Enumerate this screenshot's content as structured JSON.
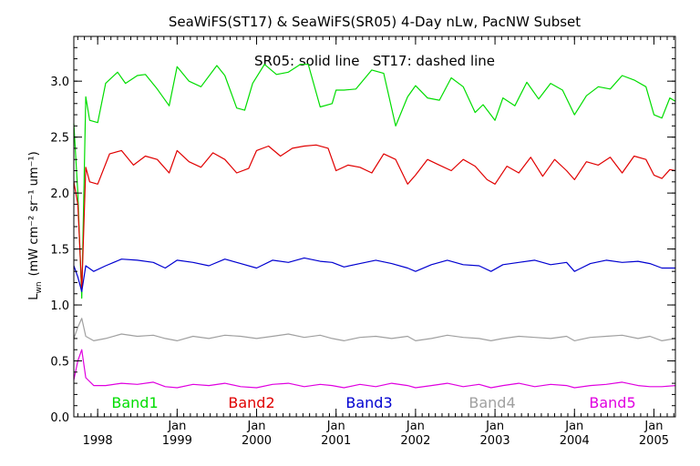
{
  "chart_data": {
    "type": "line",
    "title": "SeaWiFS(ST17) & SeaWiFS(SR05) 4-Day nLw, PacNW Subset",
    "subtitle": "SR05: solid line   ST17: dashed line",
    "ylabel": "L",
    "ylabel_sub": "wn",
    "ylabel_units": "(mW cm⁻² sr⁻¹ um⁻¹)",
    "xlim": [
      1997.7,
      2005.27
    ],
    "ylim": [
      0.0,
      3.4
    ],
    "yticks": [
      0.0,
      0.5,
      1.0,
      1.5,
      2.0,
      2.5,
      3.0
    ],
    "ytick_labels": [
      "0.0",
      "0.5",
      "1.0",
      "1.5",
      "2.0",
      "2.5",
      "3.0"
    ],
    "xticks": [
      {
        "x": 1998.0,
        "top": "",
        "bottom": "1998"
      },
      {
        "x": 1999.0,
        "top": "Jan",
        "bottom": "1999"
      },
      {
        "x": 2000.0,
        "top": "Jan",
        "bottom": "2000"
      },
      {
        "x": 2001.0,
        "top": "Jan",
        "bottom": "2001"
      },
      {
        "x": 2002.0,
        "top": "Jan",
        "bottom": "2002"
      },
      {
        "x": 2003.0,
        "top": "Jan",
        "bottom": "2003"
      },
      {
        "x": 2004.0,
        "top": "Jan",
        "bottom": "2004"
      },
      {
        "x": 2005.0,
        "top": "Jan",
        "bottom": "2005"
      }
    ],
    "series": [
      {
        "name": "Band1",
        "color": "#00dd00",
        "x": [
          1997.7,
          1997.75,
          1997.8,
          1997.85,
          1997.9,
          1998.0,
          1998.1,
          1998.25,
          1998.35,
          1998.5,
          1998.6,
          1998.75,
          1998.9,
          1999.0,
          1999.15,
          1999.3,
          1999.5,
          1999.6,
          1999.75,
          1999.85,
          1999.95,
          2000.1,
          2000.25,
          2000.4,
          2000.55,
          2000.65,
          2000.8,
          2000.95,
          2001.0,
          2001.1,
          2001.25,
          2001.45,
          2001.6,
          2001.75,
          2001.9,
          2002.0,
          2002.15,
          2002.3,
          2002.45,
          2002.6,
          2002.75,
          2002.85,
          2003.0,
          2003.1,
          2003.25,
          2003.4,
          2003.55,
          2003.7,
          2003.85,
          2004.0,
          2004.15,
          2004.3,
          2004.45,
          2004.6,
          2004.75,
          2004.9,
          2005.0,
          2005.1,
          2005.2,
          2005.27
        ],
        "values": [
          2.62,
          2.0,
          1.06,
          2.86,
          2.65,
          2.63,
          2.98,
          3.08,
          2.98,
          3.05,
          3.06,
          2.93,
          2.78,
          3.13,
          3.0,
          2.95,
          3.14,
          3.05,
          2.76,
          2.74,
          2.98,
          3.15,
          3.06,
          3.08,
          3.15,
          3.15,
          2.77,
          2.8,
          2.92,
          2.92,
          2.93,
          3.1,
          3.07,
          2.6,
          2.86,
          2.96,
          2.85,
          2.83,
          3.03,
          2.95,
          2.72,
          2.79,
          2.65,
          2.85,
          2.78,
          2.99,
          2.84,
          2.98,
          2.92,
          2.7,
          2.87,
          2.95,
          2.93,
          3.05,
          3.01,
          2.95,
          2.7,
          2.67,
          2.85,
          2.82
        ]
      },
      {
        "name": "Band2",
        "color": "#e00000",
        "x": [
          1997.7,
          1997.75,
          1997.8,
          1997.85,
          1997.9,
          1998.0,
          1998.15,
          1998.3,
          1998.45,
          1998.6,
          1998.75,
          1998.9,
          1999.0,
          1999.15,
          1999.3,
          1999.45,
          1999.6,
          1999.75,
          1999.9,
          2000.0,
          2000.15,
          2000.3,
          2000.45,
          2000.6,
          2000.75,
          2000.9,
          2001.0,
          2001.15,
          2001.3,
          2001.45,
          2001.6,
          2001.75,
          2001.9,
          2002.0,
          2002.15,
          2002.3,
          2002.45,
          2002.6,
          2002.75,
          2002.9,
          2003.0,
          2003.15,
          2003.3,
          2003.45,
          2003.6,
          2003.75,
          2003.9,
          2004.0,
          2004.15,
          2004.3,
          2004.45,
          2004.6,
          2004.75,
          2004.9,
          2005.0,
          2005.1,
          2005.2,
          2005.27
        ],
        "values": [
          2.1,
          1.9,
          1.13,
          2.23,
          2.1,
          2.08,
          2.35,
          2.38,
          2.25,
          2.33,
          2.3,
          2.18,
          2.38,
          2.28,
          2.23,
          2.36,
          2.3,
          2.18,
          2.22,
          2.38,
          2.42,
          2.33,
          2.4,
          2.42,
          2.43,
          2.4,
          2.2,
          2.25,
          2.23,
          2.18,
          2.35,
          2.3,
          2.08,
          2.16,
          2.3,
          2.25,
          2.2,
          2.3,
          2.24,
          2.12,
          2.08,
          2.24,
          2.18,
          2.32,
          2.15,
          2.3,
          2.2,
          2.12,
          2.28,
          2.25,
          2.32,
          2.18,
          2.33,
          2.3,
          2.16,
          2.13,
          2.21,
          2.2
        ]
      },
      {
        "name": "Band3",
        "color": "#0000d0",
        "x": [
          1997.7,
          1997.75,
          1997.8,
          1997.85,
          1997.95,
          1998.1,
          1998.3,
          1998.5,
          1998.7,
          1998.85,
          1999.0,
          1999.2,
          1999.4,
          1999.6,
          1999.8,
          2000.0,
          2000.2,
          2000.4,
          2000.6,
          2000.8,
          2000.95,
          2001.1,
          2001.3,
          2001.5,
          2001.7,
          2001.9,
          2002.0,
          2002.2,
          2002.4,
          2002.6,
          2002.8,
          2002.95,
          2003.1,
          2003.3,
          2003.5,
          2003.7,
          2003.9,
          2004.0,
          2004.2,
          2004.4,
          2004.6,
          2004.8,
          2004.95,
          2005.1,
          2005.27
        ],
        "values": [
          1.35,
          1.25,
          1.12,
          1.35,
          1.3,
          1.35,
          1.41,
          1.4,
          1.38,
          1.33,
          1.4,
          1.38,
          1.35,
          1.41,
          1.37,
          1.33,
          1.4,
          1.38,
          1.42,
          1.39,
          1.38,
          1.34,
          1.37,
          1.4,
          1.37,
          1.33,
          1.3,
          1.36,
          1.4,
          1.36,
          1.35,
          1.3,
          1.36,
          1.38,
          1.4,
          1.36,
          1.38,
          1.3,
          1.37,
          1.4,
          1.38,
          1.39,
          1.37,
          1.33,
          1.33
        ]
      },
      {
        "name": "Band4",
        "color": "#a0a0a0",
        "x": [
          1997.7,
          1997.75,
          1997.8,
          1997.85,
          1997.95,
          1998.1,
          1998.3,
          1998.5,
          1998.7,
          1998.85,
          1999.0,
          1999.2,
          1999.4,
          1999.6,
          1999.8,
          2000.0,
          2000.2,
          2000.4,
          2000.6,
          2000.8,
          2000.95,
          2001.1,
          2001.3,
          2001.5,
          2001.7,
          2001.9,
          2002.0,
          2002.2,
          2002.4,
          2002.6,
          2002.8,
          2002.95,
          2003.1,
          2003.3,
          2003.5,
          2003.7,
          2003.9,
          2004.0,
          2004.2,
          2004.4,
          2004.6,
          2004.8,
          2004.95,
          2005.1,
          2005.27
        ],
        "values": [
          0.7,
          0.8,
          0.88,
          0.72,
          0.68,
          0.7,
          0.74,
          0.72,
          0.73,
          0.7,
          0.68,
          0.72,
          0.7,
          0.73,
          0.72,
          0.7,
          0.72,
          0.74,
          0.71,
          0.73,
          0.7,
          0.68,
          0.71,
          0.72,
          0.7,
          0.72,
          0.68,
          0.7,
          0.73,
          0.71,
          0.7,
          0.68,
          0.7,
          0.72,
          0.71,
          0.7,
          0.72,
          0.68,
          0.71,
          0.72,
          0.73,
          0.7,
          0.72,
          0.68,
          0.7
        ]
      },
      {
        "name": "Band5",
        "color": "#e000e0",
        "x": [
          1997.7,
          1997.75,
          1997.8,
          1997.85,
          1997.95,
          1998.1,
          1998.3,
          1998.5,
          1998.7,
          1998.85,
          1999.0,
          1999.2,
          1999.4,
          1999.6,
          1999.8,
          2000.0,
          2000.2,
          2000.4,
          2000.6,
          2000.8,
          2000.95,
          2001.1,
          2001.3,
          2001.5,
          2001.7,
          2001.9,
          2002.0,
          2002.2,
          2002.4,
          2002.6,
          2002.8,
          2002.95,
          2003.1,
          2003.3,
          2003.5,
          2003.7,
          2003.9,
          2004.0,
          2004.2,
          2004.4,
          2004.6,
          2004.8,
          2004.95,
          2005.1,
          2005.27
        ],
        "values": [
          0.33,
          0.5,
          0.6,
          0.35,
          0.28,
          0.28,
          0.3,
          0.29,
          0.31,
          0.27,
          0.26,
          0.29,
          0.28,
          0.3,
          0.27,
          0.26,
          0.29,
          0.3,
          0.27,
          0.29,
          0.28,
          0.26,
          0.29,
          0.27,
          0.3,
          0.28,
          0.26,
          0.28,
          0.3,
          0.27,
          0.29,
          0.26,
          0.28,
          0.3,
          0.27,
          0.29,
          0.28,
          0.26,
          0.28,
          0.29,
          0.31,
          0.28,
          0.27,
          0.27,
          0.28
        ]
      }
    ]
  }
}
